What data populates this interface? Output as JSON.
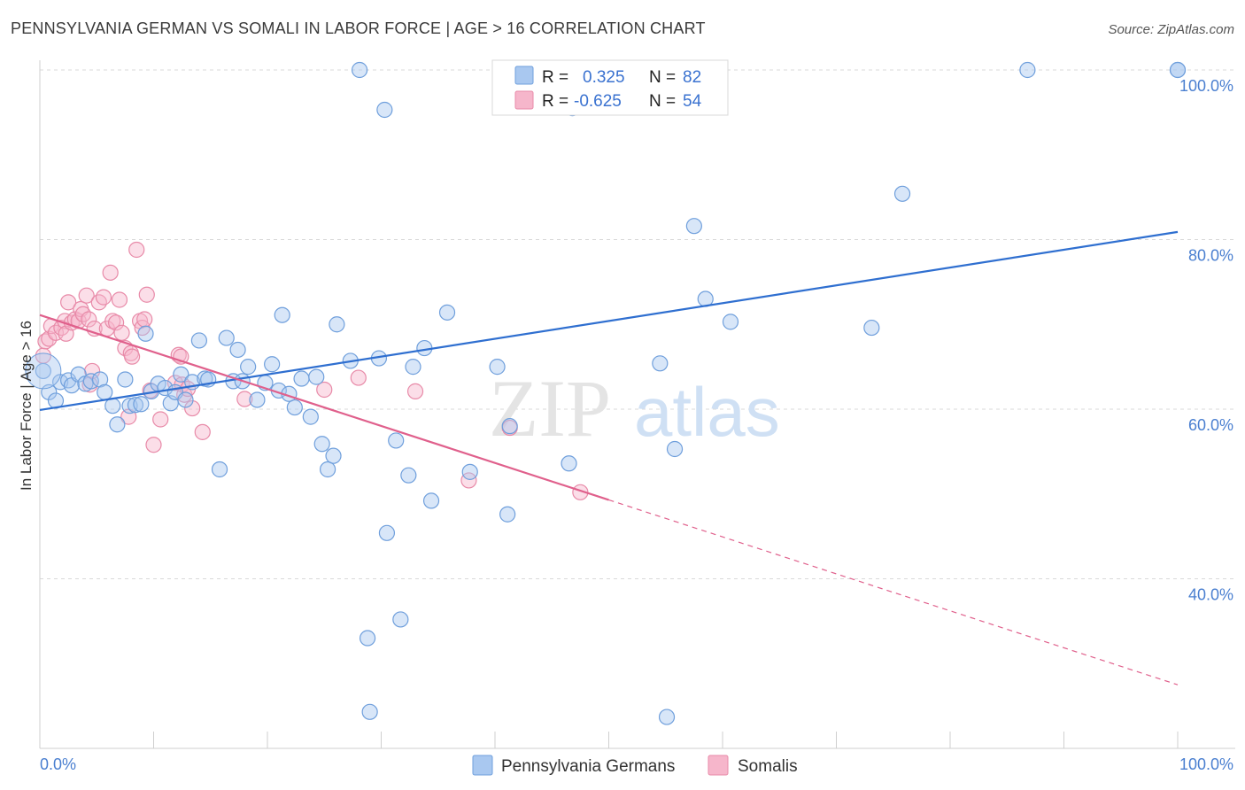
{
  "title": "PENNSYLVANIA GERMAN VS SOMALI IN LABOR FORCE | AGE > 16 CORRELATION CHART",
  "source": "Source: ZipAtlas.com",
  "colors": {
    "blue_fill": "#a9c8f0",
    "blue_stroke": "#6f9fdc",
    "blue_line": "#2f6fd0",
    "pink_fill": "#f6b6cb",
    "pink_stroke": "#e88aa8",
    "pink_line": "#e0608c",
    "grid": "#d9d9d9",
    "label": "#4a7fd0"
  },
  "watermark": {
    "zip": "ZIP",
    "atlas": "atlas"
  },
  "legend": {
    "row1": {
      "r_label": "R =",
      "r_value": "0.325",
      "n_label": "N =",
      "n_value": "82"
    },
    "row2": {
      "r_label": "R =",
      "r_value": "-0.625",
      "n_label": "N =",
      "n_value": "54"
    }
  },
  "bottom_legend": [
    "Pennsylvania Germans",
    "Somalis"
  ],
  "chart_data": {
    "type": "scatter",
    "ylabel": "In Labor Force | Age > 16",
    "xlim": [
      0,
      100
    ],
    "ylim": [
      20,
      100
    ],
    "x_tick_labels": [
      "0.0%",
      "100.0%"
    ],
    "y_ticks": [
      40,
      60,
      80,
      100
    ],
    "y_tick_labels": [
      "40.0%",
      "60.0%",
      "80.0%",
      "100.0%"
    ],
    "grid": true,
    "legend_position": "top-center",
    "series": [
      {
        "name": "Pennsylvania Germans",
        "R": 0.325,
        "N": 82,
        "trend": {
          "x": [
            0,
            100
          ],
          "y": [
            59.9,
            80.9
          ]
        },
        "points": [
          [
            0.3,
            64.5
          ],
          [
            0.8,
            62
          ],
          [
            1.4,
            61
          ],
          [
            1.8,
            63.2
          ],
          [
            2.5,
            63.4
          ],
          [
            2.8,
            62.8
          ],
          [
            3.4,
            64.1
          ],
          [
            4.0,
            63
          ],
          [
            4.5,
            63.3
          ],
          [
            5.3,
            63.5
          ],
          [
            5.7,
            62
          ],
          [
            6.4,
            60.4
          ],
          [
            6.8,
            58.2
          ],
          [
            7.5,
            63.5
          ],
          [
            7.9,
            60.4
          ],
          [
            8.4,
            60.5
          ],
          [
            8.9,
            60.6
          ],
          [
            9.3,
            68.9
          ],
          [
            9.8,
            62.1
          ],
          [
            10.4,
            63
          ],
          [
            11.0,
            62.5
          ],
          [
            11.5,
            60.7
          ],
          [
            11.9,
            62
          ],
          [
            12.4,
            64.1
          ],
          [
            12.8,
            61.1
          ],
          [
            13.4,
            63.2
          ],
          [
            14.0,
            68.1
          ],
          [
            14.5,
            63.6
          ],
          [
            14.8,
            63.5
          ],
          [
            15.8,
            52.9
          ],
          [
            16.4,
            68.4
          ],
          [
            17.0,
            63.3
          ],
          [
            17.4,
            67
          ],
          [
            17.8,
            63.3
          ],
          [
            18.3,
            65
          ],
          [
            19.1,
            61.1
          ],
          [
            19.8,
            63.1
          ],
          [
            20.4,
            65.3
          ],
          [
            21.0,
            62.2
          ],
          [
            21.3,
            71.1
          ],
          [
            21.9,
            61.8
          ],
          [
            22.4,
            60.2
          ],
          [
            23.0,
            63.6
          ],
          [
            23.8,
            59.1
          ],
          [
            24.3,
            63.8
          ],
          [
            24.8,
            55.9
          ],
          [
            25.3,
            52.9
          ],
          [
            25.8,
            54.5
          ],
          [
            26.1,
            70
          ],
          [
            27.3,
            65.7
          ],
          [
            28.1,
            100
          ],
          [
            28.8,
            33
          ],
          [
            29.0,
            24.3
          ],
          [
            29.8,
            66
          ],
          [
            30.3,
            95.3
          ],
          [
            30.5,
            45.4
          ],
          [
            31.3,
            56.3
          ],
          [
            31.7,
            35.2
          ],
          [
            32.4,
            52.2
          ],
          [
            32.8,
            65
          ],
          [
            33.8,
            67.2
          ],
          [
            34.4,
            49.2
          ],
          [
            35.8,
            71.4
          ],
          [
            37.8,
            52.6
          ],
          [
            40.2,
            65
          ],
          [
            41.3,
            58
          ],
          [
            41.1,
            47.6
          ],
          [
            43.3,
            100
          ],
          [
            46.5,
            53.6
          ],
          [
            46.8,
            95.5
          ],
          [
            47.7,
            100
          ],
          [
            54.5,
            65.4
          ],
          [
            55.1,
            23.7
          ],
          [
            55.8,
            55.3
          ],
          [
            57.5,
            81.6
          ],
          [
            58.5,
            73
          ],
          [
            60.7,
            70.3
          ],
          [
            73.1,
            69.6
          ],
          [
            75.8,
            85.4
          ],
          [
            86.8,
            100
          ],
          [
            100.0,
            100
          ],
          [
            100.0,
            100
          ]
        ]
      },
      {
        "name": "Somalis",
        "R": -0.625,
        "N": 54,
        "trend": {
          "x": [
            0,
            50
          ],
          "y": [
            71.1,
            49.3
          ]
        },
        "trend_dashed": {
          "x": [
            50,
            100
          ],
          "y": [
            49.3,
            27.5
          ]
        },
        "points": [
          [
            0.3,
            66.3
          ],
          [
            0.5,
            68
          ],
          [
            0.8,
            68.3
          ],
          [
            1.0,
            69.8
          ],
          [
            1.4,
            69
          ],
          [
            1.9,
            69.6
          ],
          [
            2.2,
            70.4
          ],
          [
            2.3,
            68.9
          ],
          [
            2.5,
            72.6
          ],
          [
            2.8,
            70.2
          ],
          [
            3.1,
            70.6
          ],
          [
            3.4,
            70.4
          ],
          [
            3.6,
            71.8
          ],
          [
            3.8,
            71.2
          ],
          [
            4.1,
            73.4
          ],
          [
            4.3,
            70.6
          ],
          [
            4.4,
            62.9
          ],
          [
            4.6,
            64.5
          ],
          [
            4.8,
            69.5
          ],
          [
            5.2,
            72.6
          ],
          [
            5.6,
            73.2
          ],
          [
            5.9,
            69.5
          ],
          [
            6.2,
            76.1
          ],
          [
            6.4,
            70.4
          ],
          [
            6.7,
            70.2
          ],
          [
            7.0,
            72.9
          ],
          [
            7.2,
            69
          ],
          [
            7.5,
            67.2
          ],
          [
            7.8,
            59.1
          ],
          [
            8.0,
            66.6
          ],
          [
            8.1,
            66.2
          ],
          [
            8.5,
            78.8
          ],
          [
            8.8,
            70.4
          ],
          [
            9.0,
            69.6
          ],
          [
            9.2,
            70.6
          ],
          [
            9.4,
            73.5
          ],
          [
            9.7,
            62.2
          ],
          [
            10.0,
            55.8
          ],
          [
            10.6,
            58.8
          ],
          [
            11.9,
            63.1
          ],
          [
            12.2,
            66.4
          ],
          [
            12.4,
            66.2
          ],
          [
            12.5,
            62.9
          ],
          [
            12.7,
            61.7
          ],
          [
            13.0,
            62.4
          ],
          [
            13.4,
            60.1
          ],
          [
            14.3,
            57.3
          ],
          [
            18.0,
            61.2
          ],
          [
            25.0,
            62.3
          ],
          [
            28.0,
            63.7
          ],
          [
            33.0,
            62.1
          ],
          [
            41.3,
            57.8
          ],
          [
            37.7,
            51.6
          ],
          [
            47.5,
            50.2
          ]
        ]
      }
    ]
  }
}
